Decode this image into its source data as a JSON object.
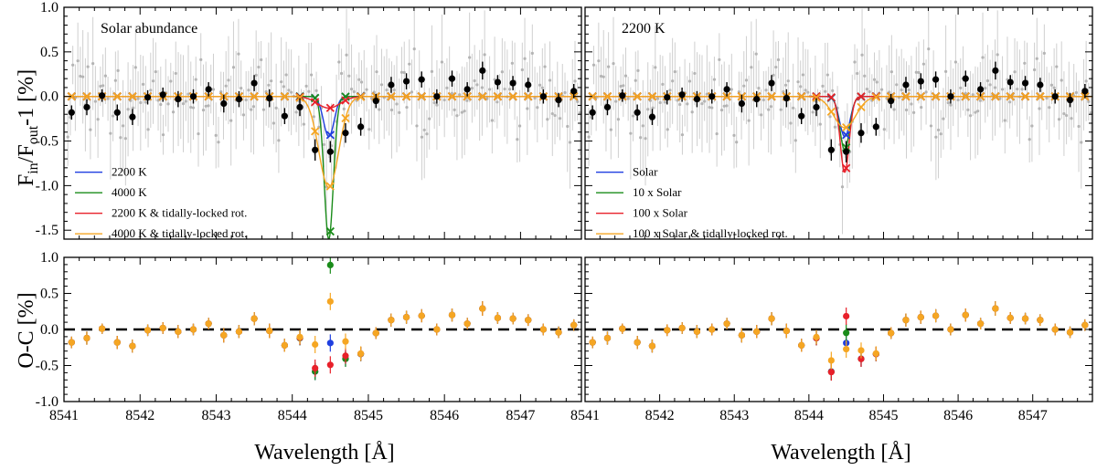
{
  "figure": {
    "ylabel_top_main": "F",
    "ylabel_top_sub1": "in",
    "ylabel_top_mid": "/F",
    "ylabel_top_sub2": "out",
    "ylabel_top_end": "-1 [%]",
    "ylabel_bottom": "O-C [%]",
    "xlabel": "Wavelength [Å]"
  },
  "colors": {
    "blue": "#1f3fe0",
    "green": "#1a8c1a",
    "red": "#e8202a",
    "orange": "#f5a623",
    "gray": "#b4b4b4"
  },
  "chart_data": [
    {
      "type": "line",
      "panel": "top-left",
      "title": "Solar abundance",
      "ylim": [
        -1.6,
        1.0
      ],
      "xlim": [
        8541,
        8547.8
      ],
      "yticks": [
        "1.0",
        "0.5",
        "0.0",
        "-0.5",
        "-1.0",
        "-1.5"
      ],
      "legend_position": "bottom-left",
      "series": [
        {
          "name": "2200 K",
          "color": "blue",
          "depth": 0.45,
          "width": 0.07
        },
        {
          "name": "4000 K",
          "color": "green",
          "depth": 1.6,
          "width": 0.06
        },
        {
          "name": "2200 K & tidally-locked rot.",
          "color": "red",
          "depth": 0.13,
          "width": 0.15
        },
        {
          "name": "4000 K & tidally-locked rot.",
          "color": "orange",
          "depth": 1.02,
          "width": 0.13
        }
      ],
      "model_points_x": [
        8541.1,
        8541.3,
        8541.5,
        8541.7,
        8541.9,
        8542.1,
        8542.3,
        8542.5,
        8542.7,
        8542.9,
        8543.1,
        8543.3,
        8543.5,
        8543.7,
        8543.9,
        8544.1,
        8544.3,
        8544.5,
        8544.7,
        8544.9,
        8545.1,
        8545.3,
        8545.5,
        8545.7,
        8545.9,
        8546.1,
        8546.3,
        8546.5,
        8546.7,
        8546.9,
        8547.1,
        8547.3,
        8547.5,
        8547.7
      ],
      "binned_data": {
        "x": [
          8541.1,
          8541.3,
          8541.5,
          8541.7,
          8541.9,
          8542.1,
          8542.3,
          8542.5,
          8542.7,
          8542.9,
          8543.1,
          8543.3,
          8543.5,
          8543.7,
          8543.9,
          8544.1,
          8544.3,
          8544.5,
          8544.7,
          8544.9,
          8545.1,
          8545.3,
          8545.5,
          8545.7,
          8545.9,
          8546.1,
          8546.3,
          8546.5,
          8546.7,
          8546.9,
          8547.1,
          8547.3,
          8547.5,
          8547.7
        ],
        "y": [
          -0.18,
          -0.12,
          0.01,
          -0.18,
          -0.23,
          -0.01,
          0.02,
          -0.03,
          0.0,
          0.08,
          -0.08,
          -0.03,
          0.15,
          -0.02,
          -0.22,
          -0.12,
          -0.6,
          -0.62,
          -0.41,
          -0.34,
          -0.05,
          0.13,
          0.17,
          0.19,
          0.0,
          0.2,
          0.08,
          0.29,
          0.16,
          0.15,
          0.13,
          0.0,
          -0.04,
          0.06
        ],
        "err": [
          0.08,
          0.09,
          0.07,
          0.09,
          0.09,
          0.08,
          0.08,
          0.09,
          0.08,
          0.08,
          0.1,
          0.09,
          0.09,
          0.1,
          0.09,
          0.1,
          0.12,
          0.12,
          0.11,
          0.1,
          0.08,
          0.09,
          0.09,
          0.09,
          0.08,
          0.09,
          0.08,
          0.1,
          0.08,
          0.08,
          0.08,
          0.08,
          0.08,
          0.08
        ]
      }
    },
    {
      "type": "line",
      "panel": "top-right",
      "title": "2200 K",
      "ylim": [
        -1.6,
        1.0
      ],
      "xlim": [
        8541,
        8547.8
      ],
      "legend_position": "bottom-left",
      "series": [
        {
          "name": "Solar",
          "color": "blue",
          "depth": 0.45,
          "width": 0.07
        },
        {
          "name": "10 x Solar",
          "color": "green",
          "depth": 0.6,
          "width": 0.065
        },
        {
          "name": "100 x Solar",
          "color": "red",
          "depth": 0.85,
          "width": 0.06
        },
        {
          "name": "100 x Solar & tidally-locked rot.",
          "color": "orange",
          "depth": 0.35,
          "width": 0.15
        }
      ],
      "binned_data_same_as": "top-left"
    },
    {
      "type": "scatter",
      "panel": "bottom-left",
      "ylim": [
        -1.0,
        1.0
      ],
      "xlim": [
        8541,
        8547.8
      ],
      "yticks": [
        "1.0",
        "0.5",
        "0.0",
        "-0.5",
        "-1.0"
      ],
      "xticks": [
        "8541",
        "8542",
        "8543",
        "8544",
        "8545",
        "8546",
        "8547"
      ],
      "residuals_of": "top-left"
    },
    {
      "type": "scatter",
      "panel": "bottom-right",
      "ylim": [
        -1.0,
        1.0
      ],
      "xlim": [
        8541,
        8547.8
      ],
      "xticks": [
        "8541",
        "8542",
        "8543",
        "8544",
        "8545",
        "8546",
        "8547"
      ],
      "residuals_of": "top-right"
    }
  ]
}
